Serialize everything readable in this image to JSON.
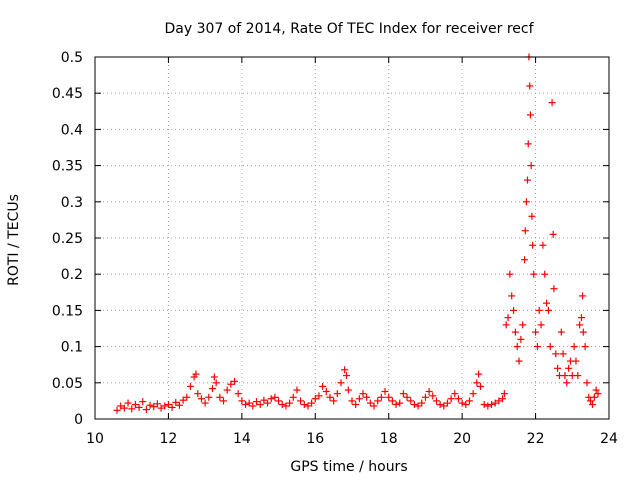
{
  "chart_data": {
    "type": "scatter",
    "title": "Day 307 of 2014, Rate Of TEC Index for receiver recf",
    "xlabel": "GPS time / hours",
    "ylabel": "ROTI / TECUs",
    "xlim": [
      10,
      24
    ],
    "ylim": [
      0,
      0.5
    ],
    "xticks": [
      10,
      12,
      14,
      16,
      18,
      20,
      22,
      24
    ],
    "yticks": [
      0,
      0.05,
      0.1,
      0.15,
      0.2,
      0.25,
      0.3,
      0.35,
      0.4,
      0.45,
      0.5
    ],
    "grid": true,
    "marker": "+",
    "color": "#ff0000",
    "series": [
      {
        "name": "ROTI",
        "points": [
          [
            10.6,
            0.012
          ],
          [
            10.7,
            0.018
          ],
          [
            10.8,
            0.015
          ],
          [
            10.9,
            0.022
          ],
          [
            11.0,
            0.014
          ],
          [
            11.1,
            0.02
          ],
          [
            11.2,
            0.016
          ],
          [
            11.3,
            0.024
          ],
          [
            11.4,
            0.013
          ],
          [
            11.5,
            0.019
          ],
          [
            11.6,
            0.017
          ],
          [
            11.7,
            0.021
          ],
          [
            11.8,
            0.015
          ],
          [
            11.9,
            0.018
          ],
          [
            12.0,
            0.02
          ],
          [
            12.1,
            0.016
          ],
          [
            12.2,
            0.023
          ],
          [
            12.3,
            0.019
          ],
          [
            12.4,
            0.026
          ],
          [
            12.5,
            0.03
          ],
          [
            12.6,
            0.045
          ],
          [
            12.7,
            0.058
          ],
          [
            12.75,
            0.062
          ],
          [
            12.8,
            0.035
          ],
          [
            12.9,
            0.028
          ],
          [
            13.0,
            0.022
          ],
          [
            13.1,
            0.03
          ],
          [
            13.2,
            0.042
          ],
          [
            13.25,
            0.058
          ],
          [
            13.3,
            0.05
          ],
          [
            13.4,
            0.03
          ],
          [
            13.5,
            0.025
          ],
          [
            13.6,
            0.04
          ],
          [
            13.7,
            0.048
          ],
          [
            13.8,
            0.052
          ],
          [
            13.9,
            0.035
          ],
          [
            14.0,
            0.025
          ],
          [
            14.1,
            0.02
          ],
          [
            14.2,
            0.022
          ],
          [
            14.3,
            0.018
          ],
          [
            14.4,
            0.024
          ],
          [
            14.5,
            0.02
          ],
          [
            14.6,
            0.026
          ],
          [
            14.7,
            0.022
          ],
          [
            14.8,
            0.028
          ],
          [
            14.9,
            0.03
          ],
          [
            15.0,
            0.025
          ],
          [
            15.1,
            0.02
          ],
          [
            15.2,
            0.018
          ],
          [
            15.3,
            0.022
          ],
          [
            15.4,
            0.03
          ],
          [
            15.5,
            0.04
          ],
          [
            15.6,
            0.025
          ],
          [
            15.7,
            0.02
          ],
          [
            15.8,
            0.018
          ],
          [
            15.9,
            0.022
          ],
          [
            16.0,
            0.028
          ],
          [
            16.1,
            0.032
          ],
          [
            16.2,
            0.045
          ],
          [
            16.3,
            0.038
          ],
          [
            16.4,
            0.03
          ],
          [
            16.5,
            0.025
          ],
          [
            16.6,
            0.035
          ],
          [
            16.7,
            0.05
          ],
          [
            16.8,
            0.068
          ],
          [
            16.85,
            0.06
          ],
          [
            16.9,
            0.04
          ],
          [
            17.0,
            0.025
          ],
          [
            17.1,
            0.02
          ],
          [
            17.2,
            0.028
          ],
          [
            17.3,
            0.035
          ],
          [
            17.4,
            0.03
          ],
          [
            17.5,
            0.022
          ],
          [
            17.6,
            0.018
          ],
          [
            17.7,
            0.025
          ],
          [
            17.8,
            0.03
          ],
          [
            17.9,
            0.038
          ],
          [
            18.0,
            0.03
          ],
          [
            18.1,
            0.025
          ],
          [
            18.2,
            0.02
          ],
          [
            18.3,
            0.022
          ],
          [
            18.4,
            0.035
          ],
          [
            18.5,
            0.03
          ],
          [
            18.6,
            0.025
          ],
          [
            18.7,
            0.02
          ],
          [
            18.8,
            0.018
          ],
          [
            18.9,
            0.022
          ],
          [
            19.0,
            0.03
          ],
          [
            19.1,
            0.038
          ],
          [
            19.2,
            0.032
          ],
          [
            19.3,
            0.025
          ],
          [
            19.4,
            0.02
          ],
          [
            19.5,
            0.018
          ],
          [
            19.6,
            0.022
          ],
          [
            19.7,
            0.028
          ],
          [
            19.8,
            0.035
          ],
          [
            19.9,
            0.028
          ],
          [
            20.0,
            0.022
          ],
          [
            20.1,
            0.02
          ],
          [
            20.2,
            0.025
          ],
          [
            20.3,
            0.035
          ],
          [
            20.4,
            0.05
          ],
          [
            20.45,
            0.062
          ],
          [
            20.5,
            0.045
          ],
          [
            20.6,
            0.02
          ],
          [
            20.7,
            0.018
          ],
          [
            20.8,
            0.02
          ],
          [
            20.9,
            0.022
          ],
          [
            21.0,
            0.025
          ],
          [
            21.1,
            0.028
          ],
          [
            21.15,
            0.035
          ],
          [
            21.2,
            0.13
          ],
          [
            21.25,
            0.14
          ],
          [
            21.3,
            0.2
          ],
          [
            21.35,
            0.17
          ],
          [
            21.4,
            0.15
          ],
          [
            21.45,
            0.12
          ],
          [
            21.5,
            0.1
          ],
          [
            21.55,
            0.08
          ],
          [
            21.6,
            0.11
          ],
          [
            21.65,
            0.13
          ],
          [
            21.7,
            0.22
          ],
          [
            21.72,
            0.26
          ],
          [
            21.75,
            0.3
          ],
          [
            21.78,
            0.33
          ],
          [
            21.8,
            0.38
          ],
          [
            21.82,
            0.5
          ],
          [
            21.84,
            0.46
          ],
          [
            21.86,
            0.42
          ],
          [
            21.88,
            0.35
          ],
          [
            21.9,
            0.28
          ],
          [
            21.92,
            0.24
          ],
          [
            21.95,
            0.2
          ],
          [
            22.0,
            0.12
          ],
          [
            22.05,
            0.1
          ],
          [
            22.1,
            0.15
          ],
          [
            22.15,
            0.13
          ],
          [
            22.2,
            0.24
          ],
          [
            22.25,
            0.2
          ],
          [
            22.3,
            0.16
          ],
          [
            22.35,
            0.15
          ],
          [
            22.4,
            0.1
          ],
          [
            22.45,
            0.437
          ],
          [
            22.48,
            0.255
          ],
          [
            22.5,
            0.18
          ],
          [
            22.55,
            0.09
          ],
          [
            22.6,
            0.07
          ],
          [
            22.65,
            0.06
          ],
          [
            22.7,
            0.12
          ],
          [
            22.75,
            0.09
          ],
          [
            22.8,
            0.06
          ],
          [
            22.85,
            0.05
          ],
          [
            22.9,
            0.07
          ],
          [
            22.95,
            0.08
          ],
          [
            23.0,
            0.06
          ],
          [
            23.05,
            0.1
          ],
          [
            23.1,
            0.08
          ],
          [
            23.15,
            0.06
          ],
          [
            23.2,
            0.13
          ],
          [
            23.25,
            0.14
          ],
          [
            23.28,
            0.17
          ],
          [
            23.3,
            0.12
          ],
          [
            23.35,
            0.1
          ],
          [
            23.4,
            0.05
          ],
          [
            23.45,
            0.03
          ],
          [
            23.5,
            0.025
          ],
          [
            23.55,
            0.02
          ],
          [
            23.6,
            0.03
          ],
          [
            23.65,
            0.04
          ],
          [
            23.7,
            0.035
          ]
        ]
      }
    ]
  }
}
